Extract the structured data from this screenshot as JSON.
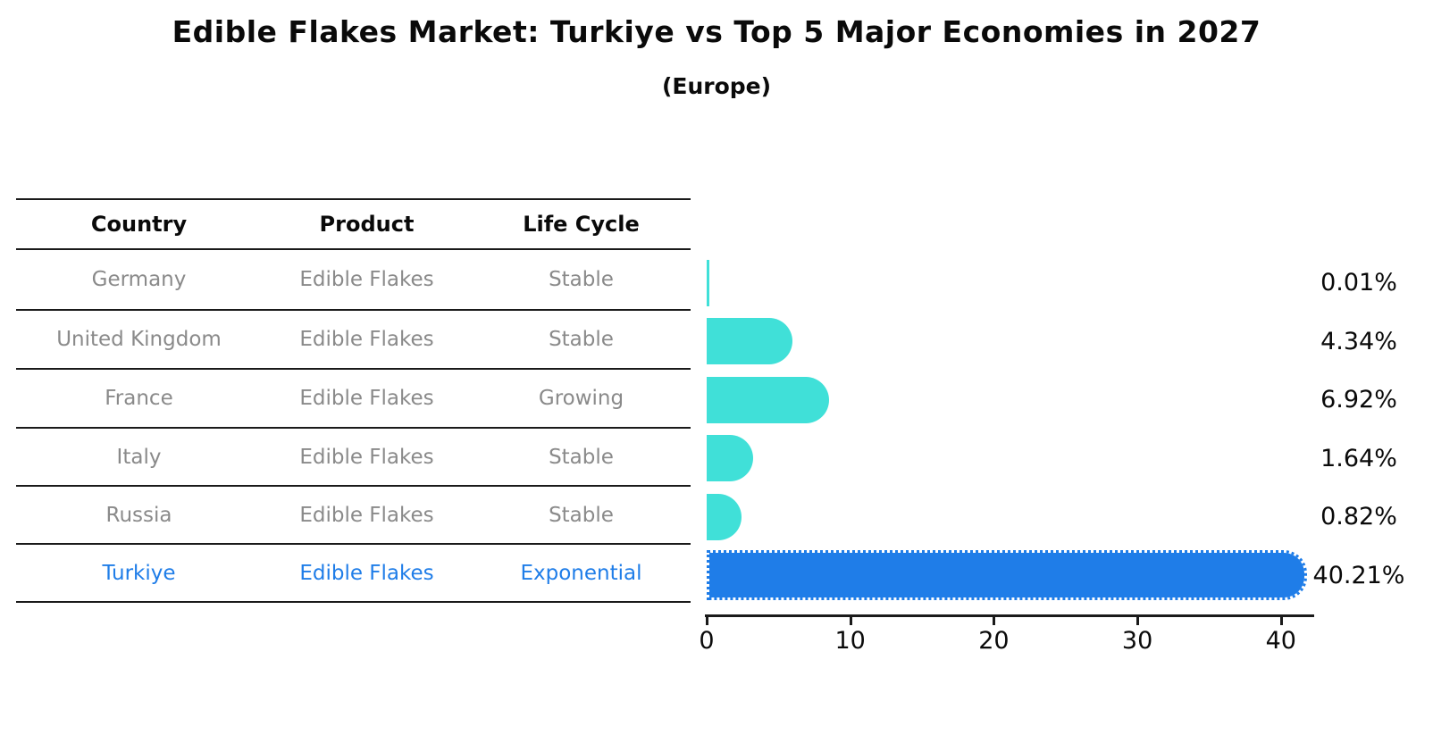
{
  "title": "Edible Flakes Market: Turkiye vs Top 5 Major Economies in 2027",
  "subtitle": "(Europe)",
  "table": {
    "columns": [
      "Country",
      "Product",
      "Life Cycle"
    ],
    "rows": [
      {
        "country": "Germany",
        "product": "Edible Flakes",
        "life_cycle": "Stable",
        "highlight": false
      },
      {
        "country": "United Kingdom",
        "product": "Edible Flakes",
        "life_cycle": "Stable",
        "highlight": false
      },
      {
        "country": "France",
        "product": "Edible Flakes",
        "life_cycle": "Growing",
        "highlight": false
      },
      {
        "country": "Italy",
        "product": "Edible Flakes",
        "life_cycle": "Stable",
        "highlight": false
      },
      {
        "country": "Russia",
        "product": "Edible Flakes",
        "life_cycle": "Stable",
        "highlight": false
      },
      {
        "country": "Turkiye",
        "product": "Edible Flakes",
        "life_cycle": "Exponential",
        "highlight": true
      }
    ]
  },
  "axis": {
    "ticks": [
      "0",
      "10",
      "20",
      "30",
      "40"
    ]
  },
  "colors": {
    "bar_default": "#40E0D8",
    "bar_highlight": "#1F7DE8",
    "row_text": "#8a8a8a",
    "highlight_text": "#1F7DE8",
    "line_color": "#1a1a1a"
  },
  "chart_data": {
    "type": "bar",
    "orientation": "horizontal",
    "title": "Edible Flakes Market: Turkiye vs Top 5 Major Economies in 2027",
    "subtitle": "(Europe)",
    "categories": [
      "Germany",
      "United Kingdom",
      "France",
      "Italy",
      "Russia",
      "Turkiye"
    ],
    "values": [
      0.01,
      4.34,
      6.92,
      1.64,
      0.82,
      40.21
    ],
    "labels": [
      "0.01%",
      "4.34%",
      "6.92%",
      "1.64%",
      "0.82%",
      "40.21%"
    ],
    "highlight_index": 5,
    "xlim": [
      0,
      42.5
    ],
    "x_ticks": [
      0,
      10,
      20,
      30,
      40
    ],
    "grid": false,
    "legend": false,
    "bar_color": "#40E0D8",
    "highlight_color": "#1F7DE8"
  }
}
